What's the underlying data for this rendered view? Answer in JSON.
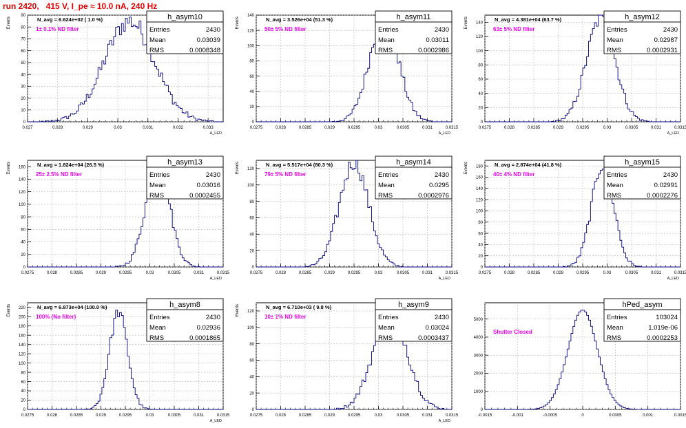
{
  "page_title": "run 2420,   415 V, I_pe ≈ 10.0 nA, 240 Hz",
  "colors": {
    "title": "#e00000",
    "histogram": "#000080",
    "annotation": "#ee00ee",
    "grid": "#b8b8b8"
  },
  "chart_data": [
    {
      "type": "bar",
      "title": "h_asym10",
      "xlabel": "A_LED",
      "ylabel": "Events",
      "xlim": [
        0.027,
        0.0335
      ],
      "ylim": [
        0,
        90
      ],
      "xticks": [
        0.027,
        0.028,
        0.029,
        0.03,
        0.031,
        0.032,
        0.033
      ],
      "xtick_labels": [
        "0.027",
        "0.028",
        "0.029",
        "0.03",
        "0.031",
        "0.032",
        "0.033"
      ],
      "yticks": [
        0,
        10,
        20,
        30,
        40,
        50,
        60,
        70,
        80,
        90
      ],
      "ytick_labels": [
        "0",
        "10",
        "20",
        "30",
        "40",
        "50",
        "60",
        "70",
        "80",
        "90"
      ],
      "header": "N_avg = 6.624e+02 ( 1.0 %)",
      "note": "1± 0.1% ND filter",
      "stats": {
        "Entries": "2430",
        "Mean": "0.03039",
        "RMS": "0.0008348"
      },
      "mean": 0.03039,
      "rms": 0.0008348,
      "peak": 85
    },
    {
      "type": "bar",
      "title": "h_asym11",
      "xlabel": "A_LED",
      "ylabel": "Events",
      "xlim": [
        0.0275,
        0.0315
      ],
      "ylim": [
        0,
        140
      ],
      "xticks": [
        0.0275,
        0.028,
        0.0285,
        0.029,
        0.0295,
        0.03,
        0.0305,
        0.031,
        0.0315
      ],
      "xtick_labels": [
        "0.0275",
        "0.028",
        "0.0285",
        "0.029",
        "0.0295",
        "0.03",
        "0.0305",
        "0.031",
        "0.0315"
      ],
      "yticks": [
        0,
        20,
        40,
        60,
        80,
        100,
        120,
        140
      ],
      "ytick_labels": [
        "0",
        "20",
        "40",
        "60",
        "80",
        "100",
        "120",
        "140"
      ],
      "header": "N_avg = 3.526e+04 (51.3 %)",
      "note": "50± 5% ND filter",
      "stats": {
        "Entries": "2430",
        "Mean": "0.03011",
        "RMS": "0.0002986"
      },
      "mean": 0.03011,
      "rms": 0.0002986,
      "peak": 134
    },
    {
      "type": "bar",
      "title": "h_asym12",
      "xlabel": "A_LED",
      "ylabel": "Events",
      "xlim": [
        0.0275,
        0.0315
      ],
      "ylim": [
        0,
        150
      ],
      "xticks": [
        0.0275,
        0.028,
        0.0285,
        0.029,
        0.0295,
        0.03,
        0.0305,
        0.031,
        0.0315
      ],
      "xtick_labels": [
        "0.0275",
        "0.028",
        "0.0285",
        "0.029",
        "0.0295",
        "0.03",
        "0.0305",
        "0.031",
        "0.0315"
      ],
      "yticks": [
        0,
        20,
        40,
        60,
        80,
        100,
        120,
        140
      ],
      "ytick_labels": [
        "0",
        "20",
        "40",
        "60",
        "80",
        "100",
        "120",
        "140"
      ],
      "header": "N_avg = 4.381e+04 (63.7 %)",
      "note": "63± 5% ND filter",
      "stats": {
        "Entries": "2430",
        "Mean": "0.02987",
        "RMS": "0.0002931"
      },
      "mean": 0.02987,
      "rms": 0.0002931,
      "peak": 145
    },
    {
      "type": "bar",
      "title": "h_asym13",
      "xlabel": "A_LED",
      "ylabel": "Events",
      "xlim": [
        0.0275,
        0.0315
      ],
      "ylim": [
        0,
        170
      ],
      "xticks": [
        0.0275,
        0.028,
        0.0285,
        0.029,
        0.0295,
        0.03,
        0.0305,
        0.031,
        0.0315
      ],
      "xtick_labels": [
        "0.0275",
        "0.028",
        "0.0285",
        "0.029",
        "0.0295",
        "0.03",
        "0.0305",
        "0.031",
        "0.0315"
      ],
      "yticks": [
        0,
        20,
        40,
        60,
        80,
        100,
        120,
        140,
        160
      ],
      "ytick_labels": [
        "0",
        "20",
        "40",
        "60",
        "80",
        "100",
        "120",
        "140",
        "160"
      ],
      "header": "N_avg = 1.824e+04 (26.5 %)",
      "note": "25± 2.5% ND filter",
      "stats": {
        "Entries": "2430",
        "Mean": "0.03016",
        "RMS": "0.0002455"
      },
      "mean": 0.03016,
      "rms": 0.0002455,
      "peak": 163
    },
    {
      "type": "bar",
      "title": "h_asym14",
      "xlabel": "A_LED",
      "ylabel": "Events",
      "xlim": [
        0.0275,
        0.0315
      ],
      "ylim": [
        0,
        130
      ],
      "xticks": [
        0.0275,
        0.028,
        0.0285,
        0.029,
        0.0295,
        0.03,
        0.0305,
        0.031,
        0.0315
      ],
      "xtick_labels": [
        "0.0275",
        "0.028",
        "0.0285",
        "0.029",
        "0.0295",
        "0.03",
        "0.0305",
        "0.031",
        "0.0315"
      ],
      "yticks": [
        0,
        20,
        40,
        60,
        80,
        100,
        120
      ],
      "ytick_labels": [
        "0",
        "20",
        "40",
        "60",
        "80",
        "100",
        "120"
      ],
      "header": "N_avg = 5.517e+04 (80.3 %)",
      "note": "79± 5% ND filter",
      "stats": {
        "Entries": "2430",
        "Mean": "0.0295",
        "RMS": "0.0002976"
      },
      "mean": 0.0295,
      "rms": 0.0002976,
      "peak": 128
    },
    {
      "type": "bar",
      "title": "h_asym15",
      "xlabel": "A_LED",
      "ylabel": "Events",
      "xlim": [
        0.0275,
        0.0315
      ],
      "ylim": [
        0,
        190
      ],
      "xticks": [
        0.0275,
        0.028,
        0.0285,
        0.029,
        0.0295,
        0.03,
        0.0305,
        0.031,
        0.0315
      ],
      "xtick_labels": [
        "0.0275",
        "0.028",
        "0.0285",
        "0.029",
        "0.0295",
        "0.03",
        "0.0305",
        "0.031",
        "0.0315"
      ],
      "yticks": [
        0,
        20,
        40,
        60,
        80,
        100,
        120,
        140,
        160,
        180
      ],
      "ytick_labels": [
        "0",
        "20",
        "40",
        "60",
        "80",
        "100",
        "120",
        "140",
        "160",
        "180"
      ],
      "header": "N_avg = 2.874e+04 (41.8 %)",
      "note": "40± 4% ND filter",
      "stats": {
        "Entries": "2430",
        "Mean": "0.02991",
        "RMS": "0.0002276"
      },
      "mean": 0.02991,
      "rms": 0.0002276,
      "peak": 182
    },
    {
      "type": "bar",
      "title": "h_asym8",
      "xlabel": "A_LED",
      "ylabel": "Events",
      "xlim": [
        0.0275,
        0.0315
      ],
      "ylim": [
        0,
        230
      ],
      "xticks": [
        0.0275,
        0.028,
        0.0285,
        0.029,
        0.0295,
        0.03,
        0.0305,
        0.031,
        0.0315
      ],
      "xtick_labels": [
        "0.0275",
        "0.028",
        "0.0285",
        "0.029",
        "0.0295",
        "0.03",
        "0.0305",
        "0.031",
        "0.0315"
      ],
      "yticks": [
        0,
        20,
        40,
        60,
        80,
        100,
        120,
        140,
        160,
        180,
        200,
        220
      ],
      "ytick_labels": [
        "0",
        "20",
        "40",
        "60",
        "80",
        "100",
        "120",
        "140",
        "160",
        "180",
        "200",
        "220"
      ],
      "header": "N_avg = 6.873e+04 (100.0 %)",
      "note": "100% (No filter)",
      "stats": {
        "Entries": "2430",
        "Mean": "0.02936",
        "RMS": "0.0001865"
      },
      "mean": 0.02936,
      "rms": 0.0001865,
      "peak": 210
    },
    {
      "type": "bar",
      "title": "h_asym9",
      "xlabel": "A_LED",
      "ylabel": "Events",
      "xlim": [
        0.0275,
        0.0315
      ],
      "ylim": [
        0,
        130
      ],
      "xticks": [
        0.0275,
        0.028,
        0.0285,
        0.029,
        0.0295,
        0.03,
        0.0305,
        0.031,
        0.0315
      ],
      "xtick_labels": [
        "0.0275",
        "0.028",
        "0.0285",
        "0.029",
        "0.0295",
        "0.03",
        "0.0305",
        "0.031",
        "0.0315"
      ],
      "yticks": [
        0,
        20,
        40,
        60,
        80,
        100,
        120
      ],
      "ytick_labels": [
        "0",
        "20",
        "40",
        "60",
        "80",
        "100",
        "120"
      ],
      "header": "N_avg = 6.710e+03 ( 9.8 %)",
      "note": "10± 1% ND filter",
      "stats": {
        "Entries": "2430",
        "Mean": "0.03024",
        "RMS": "0.0003437"
      },
      "mean": 0.03024,
      "rms": 0.0003437,
      "peak": 120
    },
    {
      "type": "bar",
      "title": "hPed_asym",
      "xlabel": "",
      "ylabel": "",
      "xlim": [
        -0.0015,
        0.0015
      ],
      "ylim": [
        0,
        5900
      ],
      "xticks": [
        -0.0015,
        -0.001,
        -0.0005,
        0,
        0.0005,
        0.001,
        0.0015
      ],
      "xtick_labels": [
        "-0.0015",
        "-0.001",
        "-0.0005",
        "0",
        "0.0005",
        "0.001",
        "0.0015"
      ],
      "yticks": [
        0,
        1000,
        2000,
        3000,
        4000,
        5000
      ],
      "ytick_labels": [
        "0",
        "1000",
        "2000",
        "3000",
        "4000",
        "5000"
      ],
      "header": "",
      "note": "Shutter Closed",
      "stats": {
        "Entries": "103024",
        "Mean": "1.019e-06",
        "RMS": "0.0002253"
      },
      "mean": 0.0,
      "rms": 0.0002253,
      "peak": 5500
    }
  ]
}
